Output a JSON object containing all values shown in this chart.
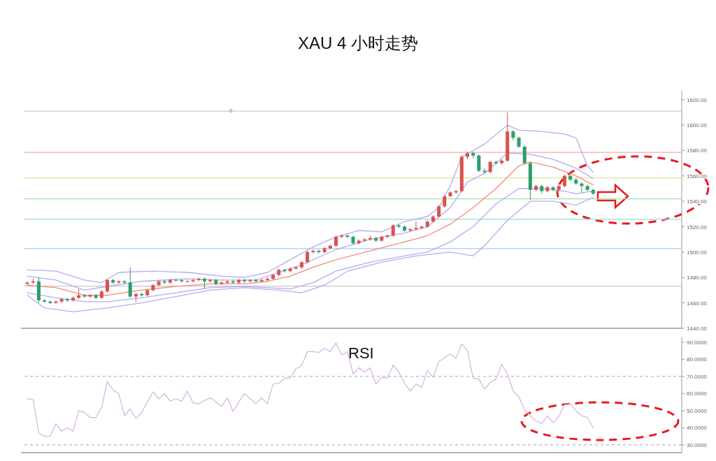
{
  "chart_data": [
    {
      "type": "candlestick",
      "title": "XAU  4 小时走势",
      "tick_labels": "y",
      "grid": false,
      "annotations": [
        "0"
      ],
      "categories": [
        null,
        null,
        null,
        null,
        null,
        null,
        null,
        null,
        null,
        null,
        null,
        null,
        null,
        null,
        null,
        null,
        null,
        null,
        null,
        null,
        null,
        null,
        null,
        null,
        null,
        null,
        null,
        null,
        null,
        null,
        null,
        null,
        null,
        null,
        null,
        null,
        null,
        null,
        null,
        null,
        null,
        null,
        null,
        null,
        null,
        null,
        null,
        null,
        null,
        null,
        null,
        null,
        null,
        null,
        null,
        null,
        null,
        null,
        null,
        null,
        null,
        null,
        null,
        null,
        null,
        null,
        null,
        null,
        null,
        null,
        null,
        null,
        null,
        null,
        null,
        null,
        null,
        null,
        null,
        null,
        null,
        null,
        null,
        null,
        null,
        null,
        null,
        null,
        null,
        null,
        null,
        null,
        null,
        null,
        null,
        null,
        null,
        null,
        null,
        null,
        null,
        null,
        null,
        null,
        null,
        null,
        null,
        null,
        null,
        null,
        null,
        null,
        null,
        null,
        null
      ],
      "ohlc": [
        [
          1475,
          1477,
          1474,
          1476
        ],
        [
          1476,
          1479,
          1475,
          1477
        ],
        [
          1477,
          1480,
          1460,
          1462
        ],
        [
          1462,
          1463,
          1460,
          1461
        ],
        [
          1461,
          1462,
          1459,
          1460
        ],
        [
          1460,
          1462,
          1459,
          1461
        ],
        [
          1461,
          1464,
          1460,
          1463
        ],
        [
          1463,
          1464,
          1461,
          1462
        ],
        [
          1462,
          1465,
          1461,
          1464
        ],
        [
          1464,
          1471,
          1463,
          1466
        ],
        [
          1466,
          1467,
          1464,
          1465
        ],
        [
          1465,
          1467,
          1464,
          1466
        ],
        [
          1466,
          1467,
          1463,
          1464
        ],
        [
          1464,
          1470,
          1463,
          1469
        ],
        [
          1469,
          1479,
          1468,
          1478
        ],
        [
          1478,
          1479,
          1475,
          1476
        ],
        [
          1476,
          1478,
          1475,
          1477
        ],
        [
          1477,
          1478,
          1475,
          1476
        ],
        [
          1476,
          1488,
          1464,
          1465
        ],
        [
          1465,
          1468,
          1461,
          1467
        ],
        [
          1467,
          1468,
          1465,
          1466
        ],
        [
          1466,
          1471,
          1465,
          1470
        ],
        [
          1470,
          1475,
          1469,
          1474
        ],
        [
          1474,
          1478,
          1473,
          1477
        ],
        [
          1477,
          1478,
          1475,
          1476
        ],
        [
          1476,
          1479,
          1475,
          1478
        ],
        [
          1478,
          1479,
          1477,
          1478
        ],
        [
          1478,
          1479,
          1476,
          1477
        ],
        [
          1477,
          1478,
          1476,
          1477
        ],
        [
          1477,
          1479,
          1476,
          1478
        ],
        [
          1478,
          1480,
          1477,
          1479
        ],
        [
          1479,
          1480,
          1471,
          1477
        ],
        [
          1477,
          1479,
          1476,
          1478
        ],
        [
          1478,
          1479,
          1474,
          1475
        ],
        [
          1475,
          1477,
          1474,
          1476
        ],
        [
          1476,
          1478,
          1475,
          1477
        ],
        [
          1477,
          1478,
          1475,
          1476
        ],
        [
          1476,
          1479,
          1475,
          1478
        ],
        [
          1478,
          1479,
          1476,
          1477
        ],
        [
          1477,
          1479,
          1476,
          1478
        ],
        [
          1478,
          1479,
          1476,
          1477
        ],
        [
          1477,
          1479,
          1476,
          1478
        ],
        [
          1478,
          1480,
          1477,
          1479
        ],
        [
          1479,
          1483,
          1478,
          1482
        ],
        [
          1482,
          1487,
          1481,
          1486
        ],
        [
          1486,
          1487,
          1484,
          1485
        ],
        [
          1485,
          1488,
          1484,
          1487
        ],
        [
          1487,
          1489,
          1486,
          1488
        ],
        [
          1488,
          1493,
          1487,
          1492
        ],
        [
          1492,
          1501,
          1491,
          1500
        ],
        [
          1500,
          1502,
          1499,
          1501
        ],
        [
          1501,
          1502,
          1499,
          1500
        ],
        [
          1500,
          1504,
          1499,
          1503
        ],
        [
          1503,
          1506,
          1502,
          1505
        ],
        [
          1505,
          1513,
          1504,
          1512
        ],
        [
          1512,
          1514,
          1511,
          1513
        ],
        [
          1513,
          1514,
          1511,
          1512
        ],
        [
          1512,
          1513,
          1506,
          1507
        ],
        [
          1507,
          1510,
          1506,
          1509
        ],
        [
          1509,
          1511,
          1508,
          1510
        ],
        [
          1510,
          1513,
          1509,
          1511
        ],
        [
          1511,
          1512,
          1508,
          1509
        ],
        [
          1509,
          1513,
          1508,
          1512
        ],
        [
          1512,
          1514,
          1511,
          1513
        ],
        [
          1513,
          1522,
          1512,
          1521
        ],
        [
          1521,
          1522,
          1519,
          1520
        ],
        [
          1520,
          1521,
          1516,
          1517
        ],
        [
          1517,
          1519,
          1516,
          1518
        ],
        [
          1518,
          1524,
          1517,
          1519
        ],
        [
          1519,
          1521,
          1518,
          1520
        ],
        [
          1520,
          1525,
          1519,
          1524
        ],
        [
          1524,
          1529,
          1523,
          1528
        ],
        [
          1528,
          1537,
          1527,
          1536
        ],
        [
          1536,
          1545,
          1535,
          1544
        ],
        [
          1544,
          1548,
          1543,
          1547
        ],
        [
          1547,
          1549,
          1546,
          1548
        ],
        [
          1548,
          1576,
          1547,
          1575
        ],
        [
          1575,
          1579,
          1573,
          1578
        ],
        [
          1578,
          1579,
          1574,
          1576
        ],
        [
          1576,
          1577,
          1563,
          1564
        ],
        [
          1564,
          1566,
          1562,
          1563
        ],
        [
          1563,
          1572,
          1562,
          1571
        ],
        [
          1571,
          1572,
          1569,
          1570
        ],
        [
          1570,
          1573,
          1569,
          1572
        ],
        [
          1572,
          1610,
          1571,
          1595
        ],
        [
          1595,
          1596,
          1588,
          1590
        ],
        [
          1590,
          1591,
          1582,
          1583
        ],
        [
          1583,
          1584,
          1569,
          1570
        ],
        [
          1570,
          1571,
          1541,
          1549
        ],
        [
          1549,
          1553,
          1548,
          1552
        ],
        [
          1552,
          1553,
          1546,
          1548
        ],
        [
          1548,
          1552,
          1547,
          1551
        ],
        [
          1551,
          1552,
          1548,
          1549
        ],
        [
          1549,
          1553,
          1548,
          1552
        ],
        [
          1552,
          1561,
          1551,
          1560
        ],
        [
          1560,
          1561,
          1556,
          1557
        ],
        [
          1557,
          1558,
          1553,
          1554
        ],
        [
          1554,
          1555,
          1547,
          1552
        ],
        [
          1552,
          1553,
          1548,
          1549
        ],
        [
          1549,
          1550,
          1545,
          1546
        ],
        null,
        null,
        null,
        null,
        null,
        null,
        null,
        null,
        null,
        null,
        null,
        null,
        null,
        null,
        null
      ],
      "series": [
        {
          "type": "line",
          "color": "#b4acf2",
          "values": [
            1486,
            null,
            null,
            null,
            null,
            1485,
            null,
            null,
            null,
            null,
            1478,
            null,
            null,
            1476,
            null,
            null,
            1484,
            null,
            null,
            null,
            null,
            null,
            1485,
            null,
            null,
            null,
            null,
            null,
            1484,
            null,
            null,
            null,
            null,
            null,
            1481,
            null,
            null,
            null,
            1480,
            null,
            null,
            null,
            1484,
            null,
            null,
            null,
            1494,
            null,
            null,
            null,
            1504,
            null,
            null,
            null,
            1512,
            null,
            null,
            null,
            1517,
            null,
            null,
            null,
            1516,
            null,
            null,
            null,
            1524,
            null,
            null,
            null,
            1528,
            null,
            1535,
            null,
            1552,
            null,
            1575,
            null,
            null,
            null,
            1585,
            null,
            null,
            null,
            1600,
            null,
            1596,
            null,
            null,
            null,
            1595,
            null,
            null,
            null,
            1593,
            null,
            1590,
            null,
            1568,
            1563,
            null,
            null,
            null,
            null,
            null,
            null,
            null,
            null,
            null,
            null,
            null,
            null,
            null,
            null,
            null
          ]
        },
        {
          "type": "line",
          "color": "#b4acf2",
          "values": [
            1481,
            null,
            null,
            null,
            null,
            1478,
            null,
            null,
            null,
            null,
            1470,
            null,
            null,
            null,
            1473,
            null,
            null,
            null,
            null,
            null,
            1477,
            null,
            null,
            null,
            null,
            null,
            null,
            null,
            1479,
            null,
            null,
            null,
            null,
            null,
            1478,
            null,
            null,
            null,
            null,
            null,
            1478,
            null,
            null,
            null,
            1484,
            null,
            null,
            null,
            1490,
            null,
            null,
            null,
            null,
            null,
            1502,
            null,
            null,
            null,
            null,
            null,
            1510,
            null,
            null,
            null,
            null,
            null,
            1515,
            null,
            null,
            null,
            1520,
            null,
            null,
            null,
            1535,
            null,
            null,
            1555,
            null,
            null,
            1562,
            null,
            null,
            null,
            1578,
            null,
            null,
            null,
            1577,
            null,
            null,
            null,
            1573,
            null,
            null,
            null,
            1566,
            null,
            null,
            1558,
            null,
            null,
            null,
            null,
            null,
            null,
            null,
            null,
            null,
            null,
            null,
            null,
            null,
            null,
            null
          ]
        },
        {
          "type": "line",
          "color": "#f28a78",
          "values": [
            1474,
            null,
            null,
            null,
            null,
            1472,
            null,
            null,
            null,
            null,
            1466,
            null,
            null,
            null,
            1466,
            null,
            null,
            null,
            null,
            null,
            1470,
            null,
            null,
            null,
            null,
            null,
            1473,
            null,
            null,
            null,
            null,
            null,
            1475,
            null,
            null,
            null,
            null,
            null,
            1475,
            null,
            null,
            null,
            1477,
            null,
            null,
            null,
            1481,
            null,
            null,
            null,
            1488,
            null,
            null,
            null,
            1494,
            null,
            null,
            null,
            null,
            null,
            1501,
            null,
            null,
            null,
            null,
            null,
            1508,
            null,
            null,
            null,
            1513,
            null,
            null,
            null,
            1522,
            null,
            null,
            null,
            1535,
            null,
            null,
            null,
            1550,
            null,
            null,
            null,
            1568,
            null,
            1571,
            null,
            null,
            null,
            1567,
            null,
            null,
            null,
            1560,
            null,
            null,
            1553,
            null,
            null,
            null,
            null,
            null,
            null,
            null,
            null,
            null,
            null,
            null,
            null,
            null,
            null,
            null
          ]
        },
        {
          "type": "line",
          "color": "#b4acf2",
          "values": [
            1468,
            null,
            null,
            null,
            null,
            1464,
            null,
            null,
            null,
            null,
            1461,
            null,
            null,
            null,
            1461,
            null,
            null,
            null,
            null,
            null,
            1464,
            null,
            null,
            null,
            null,
            null,
            1468,
            null,
            null,
            null,
            null,
            null,
            1472,
            null,
            null,
            null,
            null,
            null,
            1473,
            null,
            null,
            null,
            1472,
            null,
            null,
            null,
            1471,
            null,
            null,
            null,
            1476,
            null,
            null,
            null,
            1485,
            null,
            null,
            null,
            null,
            null,
            1492,
            null,
            null,
            null,
            null,
            null,
            1497,
            null,
            null,
            null,
            1500,
            null,
            null,
            null,
            1508,
            null,
            null,
            null,
            1520,
            null,
            null,
            null,
            1538,
            null,
            null,
            null,
            1550,
            null,
            null,
            null,
            1550,
            null,
            null,
            null,
            1548,
            null,
            1546,
            null,
            null,
            1548,
            null,
            null,
            null,
            null,
            null,
            null,
            null,
            null,
            null,
            null,
            null,
            null,
            null,
            null,
            null
          ]
        },
        {
          "type": "line",
          "color": "#b4acf2",
          "values": [
            1466,
            null,
            null,
            1456,
            null,
            null,
            null,
            null,
            1453,
            null,
            null,
            null,
            null,
            null,
            1456,
            null,
            null,
            null,
            null,
            null,
            1460,
            null,
            null,
            null,
            null,
            null,
            1465,
            null,
            null,
            null,
            null,
            null,
            1470,
            null,
            null,
            null,
            null,
            null,
            1472,
            null,
            null,
            null,
            null,
            null,
            1470,
            null,
            null,
            null,
            1468,
            null,
            null,
            null,
            1474,
            null,
            null,
            null,
            1485,
            null,
            null,
            null,
            null,
            null,
            1492,
            null,
            null,
            null,
            null,
            null,
            1497,
            null,
            null,
            null,
            null,
            null,
            1500,
            null,
            null,
            null,
            1497,
            null,
            1505,
            null,
            null,
            null,
            1525,
            null,
            null,
            null,
            1540,
            null,
            null,
            null,
            1540,
            null,
            null,
            null,
            1537,
            null,
            null,
            1543,
            null,
            null,
            null,
            null,
            null,
            null,
            null,
            null,
            null,
            null,
            null,
            null,
            null,
            null,
            null
          ]
        }
      ],
      "ylim": [
        1440,
        1627
      ],
      "yticks": [
        {
          "value": 1440,
          "label": "1440.00"
        },
        {
          "value": 1460,
          "label": "1460.00"
        },
        {
          "value": 1480,
          "label": "1480.00"
        },
        {
          "value": 1500,
          "label": "1500.00"
        },
        {
          "value": 1520,
          "label": "1520.00"
        },
        {
          "value": 1540,
          "label": "1540.00"
        },
        {
          "value": 1560,
          "label": "1560.00"
        },
        {
          "value": 1580,
          "label": "1580.00"
        },
        {
          "value": 1600,
          "label": "1600.00"
        },
        {
          "value": 1620,
          "label": "1620.00"
        }
      ],
      "ref_lines": [
        {
          "axis": "y",
          "value": 1611,
          "color": "#c8c8c8"
        },
        {
          "axis": "y",
          "value": 1578.5,
          "color": "#f2a8a8"
        },
        {
          "axis": "y",
          "value": 1558.5,
          "color": "#d6e89a"
        },
        {
          "axis": "y",
          "value": 1542,
          "color": "#a6e0a6"
        },
        {
          "axis": "y",
          "value": 1525.8,
          "color": "#a6e2da"
        },
        {
          "axis": "y",
          "value": 1502.8,
          "color": "#a6ccf2"
        },
        {
          "axis": "y",
          "value": 1473.2,
          "color": "#c8c8c8"
        }
      ]
    },
    {
      "type": "line",
      "title": "RSI",
      "tick_labels": "y",
      "grid": false,
      "categories": [
        null,
        null,
        null,
        null,
        null,
        null,
        null,
        null,
        null,
        null,
        null,
        null,
        null,
        null,
        null,
        null,
        null,
        null,
        null,
        null,
        null,
        null,
        null,
        null,
        null,
        null,
        null,
        null,
        null,
        null,
        null,
        null,
        null,
        null,
        null,
        null,
        null,
        null,
        null,
        null,
        null,
        null,
        null,
        null,
        null,
        null,
        null,
        null,
        null,
        null,
        null,
        null,
        null,
        null,
        null,
        null,
        null,
        null,
        null,
        null,
        null,
        null,
        null,
        null,
        null,
        null,
        null,
        null,
        null,
        null,
        null,
        null,
        null,
        null,
        null,
        null,
        null,
        null,
        null,
        null,
        null,
        null,
        null,
        null,
        null,
        null,
        null,
        null,
        null,
        null,
        null,
        null,
        null,
        null,
        null,
        null,
        null,
        null,
        null,
        null,
        null,
        null,
        null,
        null,
        null,
        null,
        null,
        null,
        null,
        null,
        null,
        null,
        null,
        null,
        null
      ],
      "series": [
        {
          "color": "#d8b8e0",
          "values": [
            57,
            56.5,
            37,
            35,
            35,
            42.5,
            38,
            40,
            38,
            50,
            49,
            46,
            46,
            52,
            67,
            62,
            60,
            47,
            51,
            45.5,
            49,
            55,
            61,
            57,
            60,
            55.5,
            57,
            55.5,
            61.5,
            54.5,
            54,
            56,
            57.5,
            55,
            52.5,
            57.5,
            49.5,
            55,
            60,
            57,
            54,
            57.5,
            54,
            65.5,
            66,
            69,
            69,
            74.5,
            76.5,
            84.5,
            84.5,
            84,
            86.5,
            84.5,
            89.5,
            82.5,
            84.5,
            71.5,
            75,
            72.5,
            75,
            65.5,
            69.5,
            69,
            76.5,
            72.5,
            66,
            61.5,
            65.5,
            63.5,
            73.5,
            69.5,
            78.5,
            81,
            83,
            80.5,
            89,
            85,
            69,
            68.5,
            62.5,
            66.5,
            68.5,
            77,
            71.5,
            61.5,
            58,
            50.5,
            47,
            44,
            42.5,
            47,
            43,
            46.5,
            53.5,
            54,
            50,
            47,
            46,
            40,
            null,
            null,
            null,
            null,
            null,
            null,
            null,
            null,
            null,
            null,
            null,
            null,
            null,
            null,
            null
          ]
        }
      ],
      "ylim": [
        25.5,
        92.8
      ],
      "yticks": [
        {
          "value": 30,
          "label": "30.0000"
        },
        {
          "value": 40,
          "label": "40.0000"
        },
        {
          "value": 50,
          "label": "50.0000"
        },
        {
          "value": 60,
          "label": "60.0000"
        },
        {
          "value": 70,
          "label": "70.0000"
        },
        {
          "value": 80,
          "label": "80.0000"
        },
        {
          "value": 90,
          "label": "90.0000"
        }
      ],
      "ref_lines": [
        {
          "axis": "y",
          "value": 70,
          "color": "#b8b8b8",
          "line_style": "dashed"
        },
        {
          "axis": "y",
          "value": 30,
          "color": "#b8b8b8",
          "line_style": "dashed"
        }
      ]
    }
  ]
}
